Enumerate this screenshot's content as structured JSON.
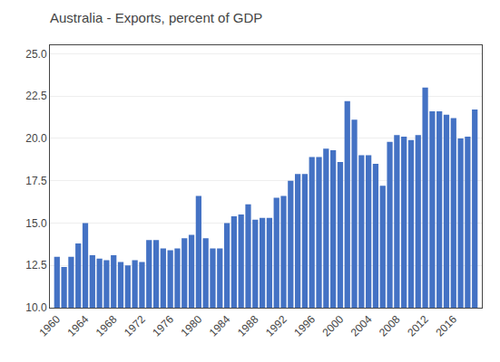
{
  "chart_data": {
    "type": "bar",
    "title": "Australia - Exports, percent of GDP",
    "x": [
      1960,
      1961,
      1962,
      1963,
      1964,
      1965,
      1966,
      1967,
      1968,
      1969,
      1970,
      1971,
      1972,
      1973,
      1974,
      1975,
      1976,
      1977,
      1978,
      1979,
      1980,
      1981,
      1982,
      1983,
      1984,
      1985,
      1986,
      1987,
      1988,
      1989,
      1990,
      1991,
      1992,
      1993,
      1994,
      1995,
      1996,
      1997,
      1998,
      1999,
      2000,
      2001,
      2002,
      2003,
      2004,
      2005,
      2006,
      2007,
      2008,
      2009,
      2010,
      2011,
      2012,
      2013,
      2014,
      2015,
      2016,
      2017,
      2018,
      2019
    ],
    "values": [
      13.0,
      12.4,
      13.0,
      13.8,
      15.0,
      13.1,
      12.9,
      12.8,
      13.1,
      12.7,
      12.5,
      12.8,
      12.7,
      14.0,
      14.0,
      13.5,
      13.4,
      13.5,
      14.1,
      14.3,
      16.6,
      14.1,
      13.5,
      13.5,
      15.0,
      15.4,
      15.5,
      16.1,
      15.2,
      15.3,
      15.3,
      16.5,
      16.6,
      17.5,
      17.9,
      17.9,
      18.9,
      18.9,
      19.4,
      19.3,
      18.6,
      22.2,
      21.1,
      19.0,
      19.0,
      18.5,
      17.2,
      19.8,
      20.2,
      20.1,
      19.9,
      20.2,
      23.0,
      21.6,
      21.6,
      21.4,
      21.2,
      20.0,
      20.1,
      21.7
    ],
    "color": "#4472C4",
    "xlim": [
      1959,
      2020
    ],
    "xticks": [
      1960,
      1964,
      1968,
      1972,
      1976,
      1980,
      1984,
      1988,
      1992,
      1996,
      2000,
      2004,
      2008,
      2012,
      2016
    ],
    "ylim": [
      10.0,
      25.5
    ],
    "yticks": [
      {
        "value": 10.0,
        "label": "10.0"
      },
      12.5,
      {
        "value": 15.0,
        "label": "15.0"
      },
      17.5,
      {
        "value": 20.0,
        "label": "20.0"
      },
      22.5,
      {
        "value": 25.0,
        "label": "25.0"
      }
    ],
    "grid": true
  }
}
